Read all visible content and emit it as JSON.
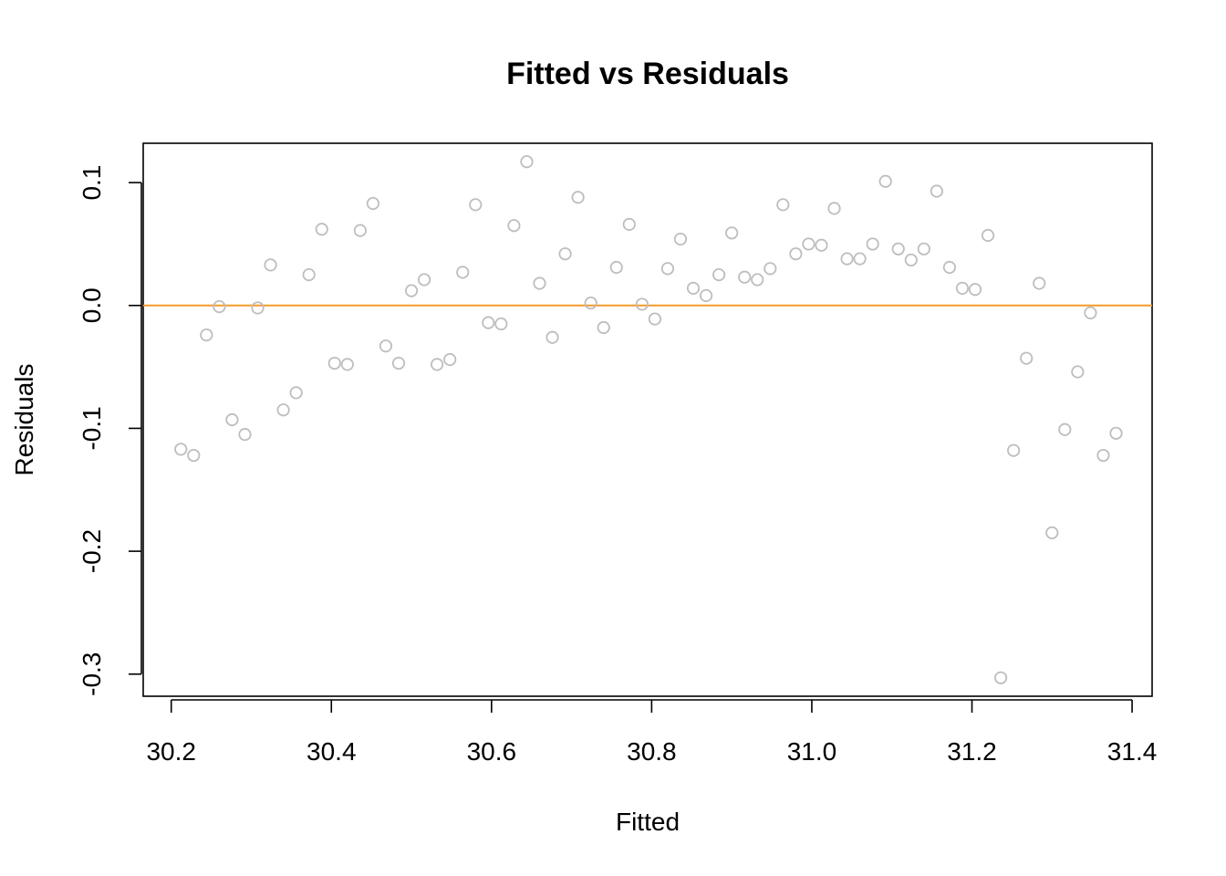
{
  "chart_data": {
    "type": "scatter",
    "title": "Fitted vs Residuals",
    "xlabel": "Fitted",
    "ylabel": "Residuals",
    "xlim": [
      30.165,
      31.425
    ],
    "ylim": [
      -0.318,
      0.132
    ],
    "x_ticks": [
      30.2,
      30.4,
      30.6,
      30.8,
      31.0,
      31.2,
      31.4
    ],
    "x_tick_labels": [
      "30.2",
      "30.4",
      "30.6",
      "30.8",
      "31.0",
      "31.2",
      "31.4"
    ],
    "y_ticks": [
      0.1,
      0.0,
      -0.1,
      -0.2,
      -0.3
    ],
    "y_tick_labels": [
      "0.1",
      "0.0",
      "-0.1",
      "-0.2",
      "-0.3"
    ],
    "reference_line": {
      "y": 0.0,
      "color": "#F39C26"
    },
    "point_color": "#BEBEBE",
    "grid": false,
    "legend": false,
    "points": [
      {
        "x": 30.212,
        "y": -0.117
      },
      {
        "x": 30.228,
        "y": -0.122
      },
      {
        "x": 30.244,
        "y": -0.024
      },
      {
        "x": 30.26,
        "y": -0.001
      },
      {
        "x": 30.276,
        "y": -0.093
      },
      {
        "x": 30.292,
        "y": -0.105
      },
      {
        "x": 30.308,
        "y": -0.002
      },
      {
        "x": 30.324,
        "y": 0.033
      },
      {
        "x": 30.34,
        "y": -0.085
      },
      {
        "x": 30.356,
        "y": -0.071
      },
      {
        "x": 30.372,
        "y": 0.025
      },
      {
        "x": 30.388,
        "y": 0.062
      },
      {
        "x": 30.404,
        "y": -0.047
      },
      {
        "x": 30.42,
        "y": -0.048
      },
      {
        "x": 30.436,
        "y": 0.061
      },
      {
        "x": 30.452,
        "y": 0.083
      },
      {
        "x": 30.468,
        "y": -0.033
      },
      {
        "x": 30.484,
        "y": -0.047
      },
      {
        "x": 30.5,
        "y": 0.012
      },
      {
        "x": 30.516,
        "y": 0.021
      },
      {
        "x": 30.532,
        "y": -0.048
      },
      {
        "x": 30.548,
        "y": -0.044
      },
      {
        "x": 30.564,
        "y": 0.027
      },
      {
        "x": 30.58,
        "y": 0.082
      },
      {
        "x": 30.596,
        "y": -0.014
      },
      {
        "x": 30.612,
        "y": -0.015
      },
      {
        "x": 30.628,
        "y": 0.065
      },
      {
        "x": 30.644,
        "y": 0.117
      },
      {
        "x": 30.66,
        "y": 0.018
      },
      {
        "x": 30.676,
        "y": -0.026
      },
      {
        "x": 30.692,
        "y": 0.042
      },
      {
        "x": 30.708,
        "y": 0.088
      },
      {
        "x": 30.724,
        "y": 0.002
      },
      {
        "x": 30.74,
        "y": -0.018
      },
      {
        "x": 30.756,
        "y": 0.031
      },
      {
        "x": 30.772,
        "y": 0.066
      },
      {
        "x": 30.788,
        "y": 0.001
      },
      {
        "x": 30.804,
        "y": -0.011
      },
      {
        "x": 30.82,
        "y": 0.03
      },
      {
        "x": 30.836,
        "y": 0.054
      },
      {
        "x": 30.852,
        "y": 0.014
      },
      {
        "x": 30.868,
        "y": 0.008
      },
      {
        "x": 30.884,
        "y": 0.025
      },
      {
        "x": 30.9,
        "y": 0.059
      },
      {
        "x": 30.916,
        "y": 0.023
      },
      {
        "x": 30.932,
        "y": 0.021
      },
      {
        "x": 30.948,
        "y": 0.03
      },
      {
        "x": 30.964,
        "y": 0.082
      },
      {
        "x": 30.98,
        "y": 0.042
      },
      {
        "x": 30.996,
        "y": 0.05
      },
      {
        "x": 31.012,
        "y": 0.049
      },
      {
        "x": 31.028,
        "y": 0.079
      },
      {
        "x": 31.044,
        "y": 0.038
      },
      {
        "x": 31.06,
        "y": 0.038
      },
      {
        "x": 31.076,
        "y": 0.05
      },
      {
        "x": 31.092,
        "y": 0.101
      },
      {
        "x": 31.108,
        "y": 0.046
      },
      {
        "x": 31.124,
        "y": 0.037
      },
      {
        "x": 31.14,
        "y": 0.046
      },
      {
        "x": 31.156,
        "y": 0.093
      },
      {
        "x": 31.172,
        "y": 0.031
      },
      {
        "x": 31.188,
        "y": 0.014
      },
      {
        "x": 31.204,
        "y": 0.013
      },
      {
        "x": 31.22,
        "y": 0.057
      },
      {
        "x": 31.236,
        "y": -0.303
      },
      {
        "x": 31.252,
        "y": -0.118
      },
      {
        "x": 31.268,
        "y": -0.043
      },
      {
        "x": 31.284,
        "y": 0.018
      },
      {
        "x": 31.3,
        "y": -0.185
      },
      {
        "x": 31.316,
        "y": -0.101
      },
      {
        "x": 31.332,
        "y": -0.054
      },
      {
        "x": 31.348,
        "y": -0.006
      },
      {
        "x": 31.364,
        "y": -0.122
      },
      {
        "x": 31.38,
        "y": -0.104
      }
    ]
  }
}
